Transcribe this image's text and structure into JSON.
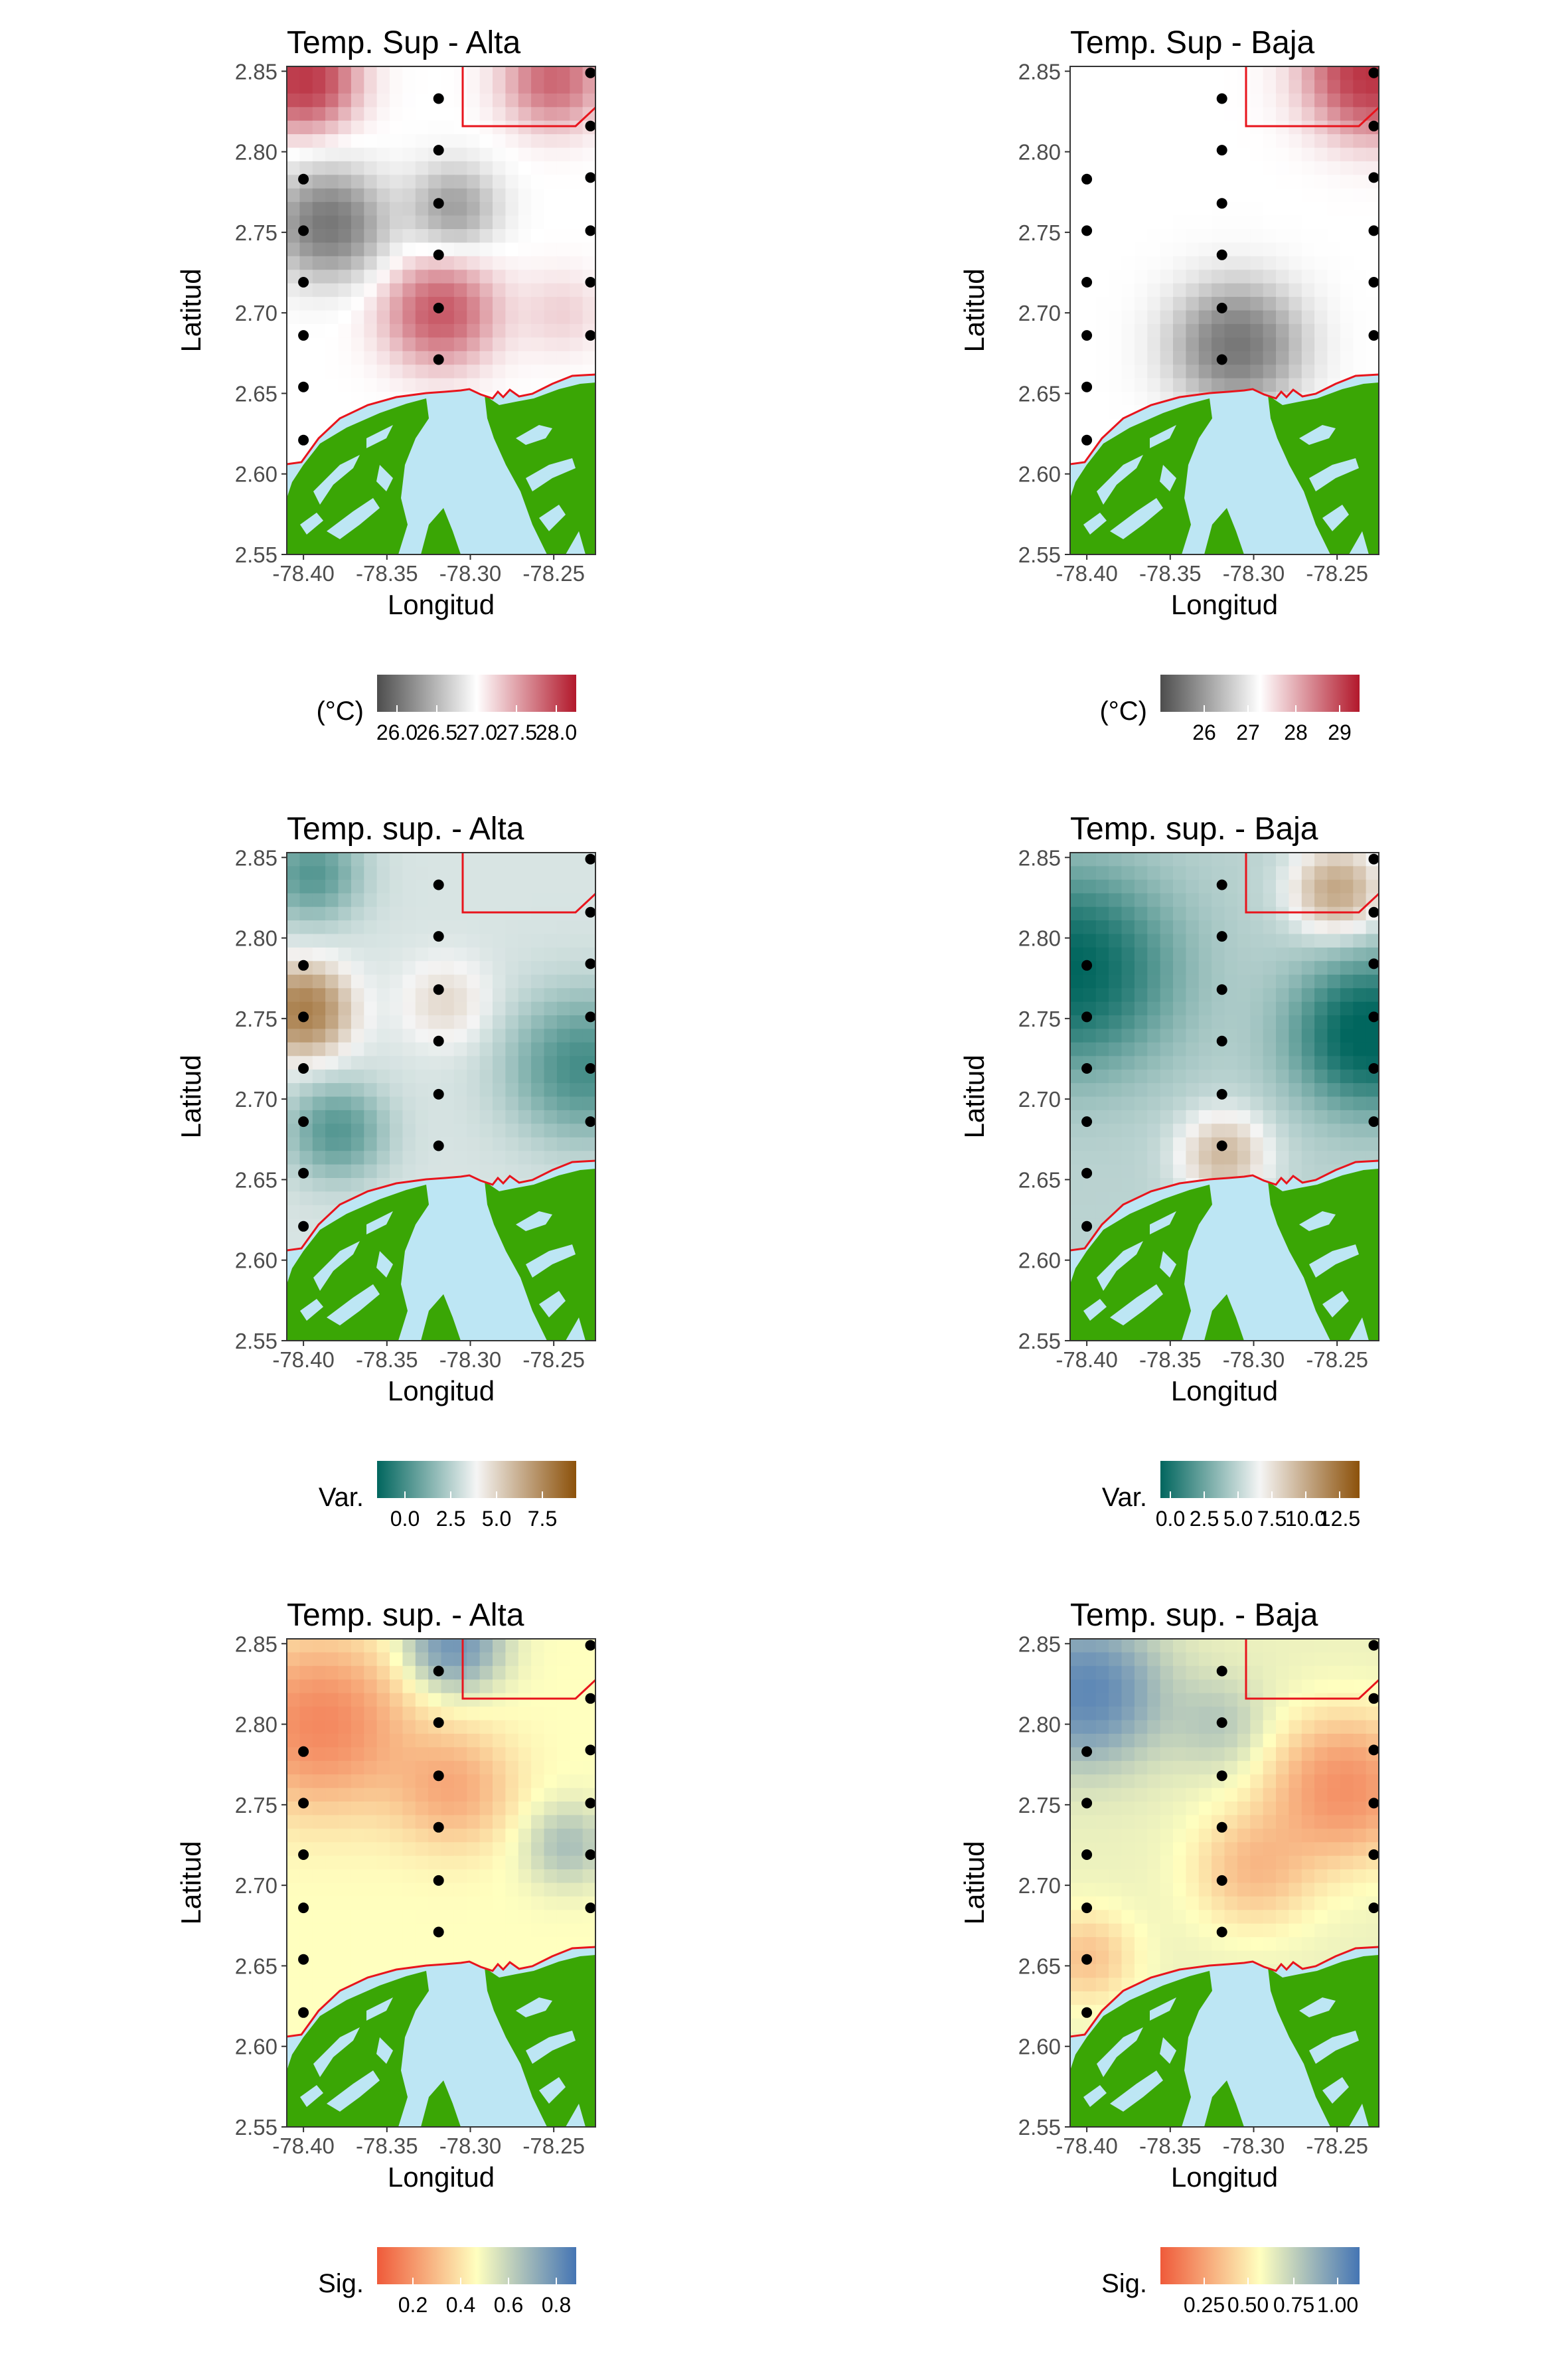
{
  "axes": {
    "xlabel": "Longitud",
    "ylabel": "Latitud",
    "x_ticks": [
      "-78.40",
      "-78.35",
      "-78.30",
      "-78.25"
    ],
    "y_ticks": [
      "2.85",
      "2.80",
      "2.75",
      "2.70",
      "2.65",
      "2.60",
      "2.55"
    ],
    "x_range": [
      -78.41,
      -78.225
    ],
    "y_range": [
      2.55,
      2.853
    ]
  },
  "colors": {
    "land": "#3aa605",
    "water": "#bde6f4",
    "boundary": "#e8141c",
    "station": "#000000"
  },
  "stations": [
    {
      "lon": -78.4,
      "lat": 2.783
    },
    {
      "lon": -78.4,
      "lat": 2.751
    },
    {
      "lon": -78.4,
      "lat": 2.719
    },
    {
      "lon": -78.4,
      "lat": 2.686
    },
    {
      "lon": -78.4,
      "lat": 2.654
    },
    {
      "lon": -78.4,
      "lat": 2.621
    },
    {
      "lon": -78.319,
      "lat": 2.833
    },
    {
      "lon": -78.319,
      "lat": 2.801
    },
    {
      "lon": -78.319,
      "lat": 2.768
    },
    {
      "lon": -78.319,
      "lat": 2.736
    },
    {
      "lon": -78.319,
      "lat": 2.703
    },
    {
      "lon": -78.319,
      "lat": 2.671
    },
    {
      "lon": -78.228,
      "lat": 2.849
    },
    {
      "lon": -78.228,
      "lat": 2.816
    },
    {
      "lon": -78.228,
      "lat": 2.784
    },
    {
      "lon": -78.228,
      "lat": 2.751
    },
    {
      "lon": -78.228,
      "lat": 2.719
    },
    {
      "lon": -78.228,
      "lat": 2.686
    }
  ],
  "panels": [
    {
      "title": "Temp. Sup - Alta",
      "legend_title": "(°C)",
      "legend_labels": [
        "26.0",
        "26.5",
        "27.0",
        "27.5",
        "28.0"
      ],
      "legend_positions": [
        0.1,
        0.3,
        0.5,
        0.7,
        0.9
      ],
      "gradient": [
        "#4d4d4d",
        "#ffffff",
        "#b2182b"
      ],
      "hot": [
        {
          "lon": -78.4,
          "lat": 2.845,
          "s": 0.02,
          "v": 1.3
        },
        {
          "lon": -78.318,
          "lat": 2.7,
          "s": 0.022,
          "v": 0.9
        },
        {
          "lon": -78.25,
          "lat": 2.845,
          "s": 0.02,
          "v": 0.8
        },
        {
          "lon": -78.245,
          "lat": 2.7,
          "s": 0.018,
          "v": 0.2
        }
      ],
      "cold": [
        {
          "lon": -78.385,
          "lat": 2.755,
          "s": 0.022,
          "v": 1.0
        },
        {
          "lon": -78.31,
          "lat": 2.765,
          "s": 0.018,
          "v": 0.6
        }
      ],
      "base": 0.5
    },
    {
      "title": "Temp. Sup - Baja",
      "legend_title": "(°C)",
      "legend_labels": [
        "26",
        "27",
        "28",
        "29"
      ],
      "legend_positions": [
        0.22,
        0.44,
        0.68,
        0.9
      ],
      "gradient": [
        "#4d4d4d",
        "#ffffff",
        "#b2182b"
      ],
      "hot": [
        {
          "lon": -78.228,
          "lat": 2.85,
          "s": 0.025,
          "v": 1.4
        }
      ],
      "cold": [
        {
          "lon": -78.31,
          "lat": 2.68,
          "s": 0.025,
          "v": 1.0
        }
      ],
      "base": 0.5
    },
    {
      "title": "Temp. sup. - Alta",
      "legend_title": "Var.",
      "legend_labels": [
        "0.0",
        "2.5",
        "5.0",
        "7.5"
      ],
      "legend_positions": [
        0.14,
        0.37,
        0.6,
        0.83
      ],
      "gradient": [
        "#01665e",
        "#f5f5f5",
        "#8c510a"
      ],
      "hot": [
        {
          "lon": -78.4,
          "lat": 2.755,
          "s": 0.018,
          "v": 1.2
        },
        {
          "lon": -78.315,
          "lat": 2.76,
          "s": 0.018,
          "v": 0.3
        }
      ],
      "cold": [
        {
          "lon": -78.395,
          "lat": 2.84,
          "s": 0.02,
          "v": 0.6
        },
        {
          "lon": -78.38,
          "lat": 2.68,
          "s": 0.02,
          "v": 0.6
        },
        {
          "lon": -78.232,
          "lat": 2.72,
          "s": 0.03,
          "v": 0.7
        }
      ],
      "base": 0.44
    },
    {
      "title": "Temp. sup. - Baja",
      "legend_title": "Var.",
      "legend_labels": [
        "0.0",
        "2.5",
        "5.0",
        "7.5",
        "10.0",
        "12.5"
      ],
      "legend_positions": [
        0.05,
        0.22,
        0.39,
        0.56,
        0.73,
        0.9
      ],
      "gradient": [
        "#01665e",
        "#f5f5f5",
        "#8c510a"
      ],
      "hot": [
        {
          "lon": -78.25,
          "lat": 2.83,
          "s": 0.018,
          "v": 0.9
        },
        {
          "lon": -78.318,
          "lat": 2.665,
          "s": 0.018,
          "v": 0.7
        }
      ],
      "cold": [
        {
          "lon": -78.41,
          "lat": 2.78,
          "s": 0.04,
          "v": 1.0
        },
        {
          "lon": -78.23,
          "lat": 2.74,
          "s": 0.03,
          "v": 1.1
        }
      ],
      "base": 0.38
    },
    {
      "title": "Temp. sup. - Alta",
      "legend_title": "Sig.",
      "legend_labels": [
        "0.2",
        "0.4",
        "0.6",
        "0.8"
      ],
      "legend_positions": [
        0.18,
        0.42,
        0.66,
        0.9
      ],
      "gradient": [
        "#ef5a3a",
        "#ffffbf",
        "#4575b4"
      ],
      "hot": [
        {
          "lon": -78.31,
          "lat": 2.85,
          "s": 0.02,
          "v": 1.0
        },
        {
          "lon": -78.242,
          "lat": 2.725,
          "s": 0.018,
          "v": 0.5
        }
      ],
      "cold": [
        {
          "lon": -78.39,
          "lat": 2.8,
          "s": 0.035,
          "v": 0.9
        },
        {
          "lon": -78.31,
          "lat": 2.76,
          "s": 0.025,
          "v": 0.55
        }
      ],
      "base": 0.5
    },
    {
      "title": "Temp. sup. - Baja",
      "legend_title": "Sig.",
      "legend_labels": [
        "0.25",
        "0.50",
        "0.75",
        "1.00"
      ],
      "legend_positions": [
        0.22,
        0.44,
        0.67,
        0.89
      ],
      "gradient": [
        "#ef5a3a",
        "#ffffbf",
        "#4575b4"
      ],
      "hot": [
        {
          "lon": -78.4,
          "lat": 2.82,
          "s": 0.03,
          "v": 1.0
        },
        {
          "lon": -78.32,
          "lat": 2.8,
          "s": 0.02,
          "v": 0.3
        }
      ],
      "cold": [
        {
          "lon": -78.245,
          "lat": 2.76,
          "s": 0.03,
          "v": 1.0
        },
        {
          "lon": -78.3,
          "lat": 2.71,
          "s": 0.025,
          "v": 0.55
        },
        {
          "lon": -78.4,
          "lat": 2.655,
          "s": 0.02,
          "v": 0.5
        }
      ],
      "base": 0.55
    }
  ]
}
